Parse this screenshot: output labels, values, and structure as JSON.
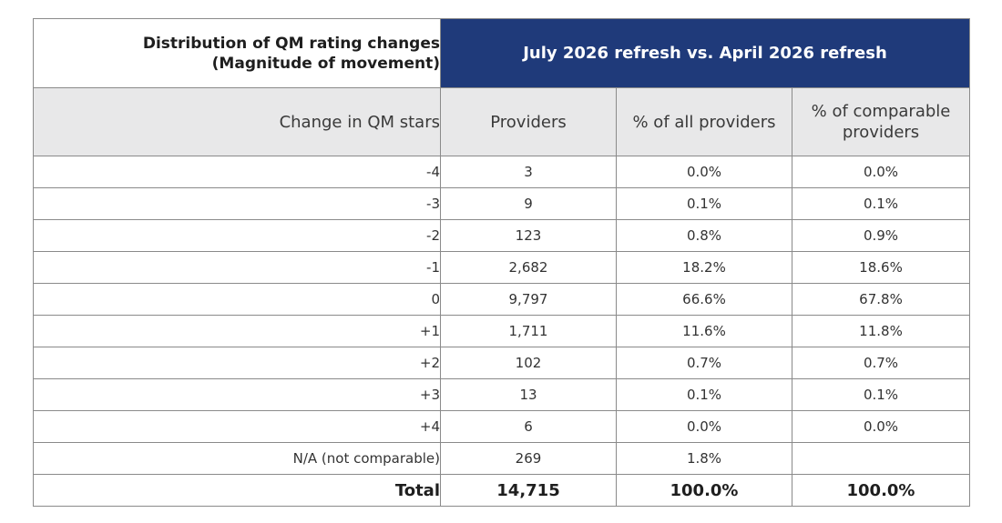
{
  "title": {
    "line1": "Distribution of QM rating changes",
    "line2": "(Magnitude of movement)"
  },
  "banner": "July 2026 refresh vs. April 2026 refresh",
  "headers": {
    "label": "Change in QM stars",
    "providers": "Providers",
    "pct_all": "% of all providers",
    "pct_comparable_line1": "% of comparable",
    "pct_comparable_line2": "providers"
  },
  "rows": [
    {
      "change": "-4",
      "providers": "3",
      "pct_all": "0.0%",
      "pct_comparable": "0.0%"
    },
    {
      "change": "-3",
      "providers": "9",
      "pct_all": "0.1%",
      "pct_comparable": "0.1%"
    },
    {
      "change": "-2",
      "providers": "123",
      "pct_all": "0.8%",
      "pct_comparable": "0.9%"
    },
    {
      "change": "-1",
      "providers": "2,682",
      "pct_all": "18.2%",
      "pct_comparable": "18.6%"
    },
    {
      "change": "0",
      "providers": "9,797",
      "pct_all": "66.6%",
      "pct_comparable": "67.8%"
    },
    {
      "change": "+1",
      "providers": "1,711",
      "pct_all": "11.6%",
      "pct_comparable": "11.8%"
    },
    {
      "change": "+2",
      "providers": "102",
      "pct_all": "0.7%",
      "pct_comparable": "0.7%"
    },
    {
      "change": "+3",
      "providers": "13",
      "pct_all": "0.1%",
      "pct_comparable": "0.1%"
    },
    {
      "change": "+4",
      "providers": "6",
      "pct_all": "0.0%",
      "pct_comparable": "0.0%"
    },
    {
      "change": "N/A (not comparable)",
      "providers": "269",
      "pct_all": "1.8%",
      "pct_comparable": ""
    }
  ],
  "total": {
    "label": "Total",
    "providers": "14,715",
    "pct_all": "100.0%",
    "pct_comparable": "100.0%"
  },
  "colors": {
    "banner_bg": "#1f3a7a",
    "header_bg": "#e8e8e9"
  }
}
